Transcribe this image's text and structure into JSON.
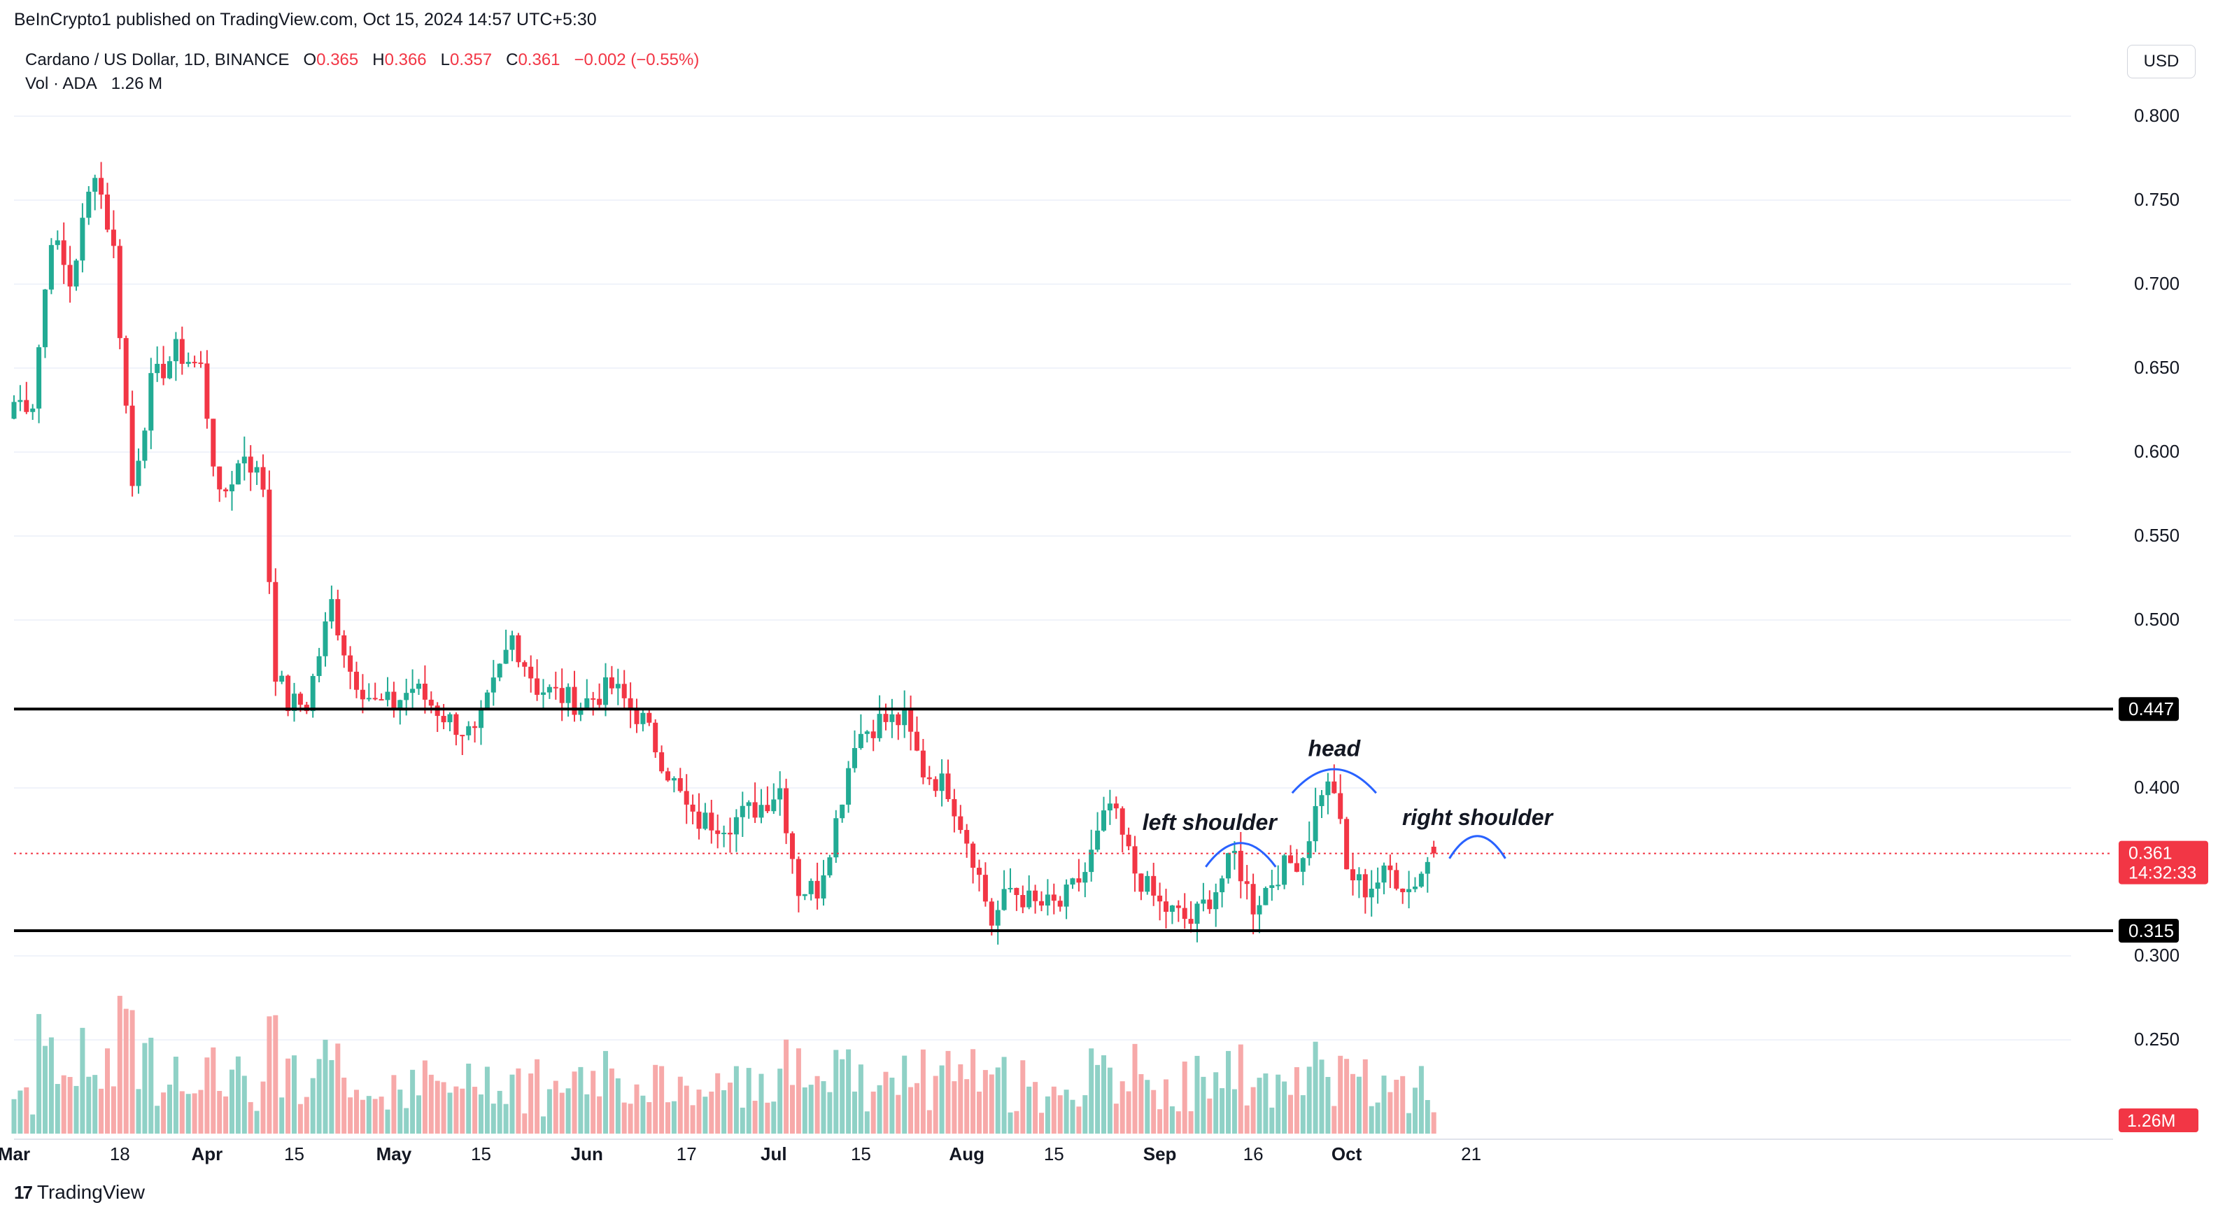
{
  "publisher_line": "BeInCrypto1 published on TradingView.com, Oct 15, 2024 14:57 UTC+5:30",
  "legend": {
    "symbol": "Cardano / US Dollar, 1D, BINANCE",
    "o_label": "O",
    "o": "0.365",
    "h_label": "H",
    "h": "0.366",
    "l_label": "L",
    "l": "0.357",
    "c_label": "C",
    "c": "0.361",
    "change": "−0.002 (−0.55%)",
    "vol_label": "Vol · ADA",
    "vol": "1.26 M"
  },
  "currency_button": "USD",
  "brand": "TradingView",
  "colors": {
    "up": "#22ab94",
    "down": "#f23645",
    "up_vol": "#8fd1c6",
    "down_vol": "#f7a9a9",
    "annotation": "#2962ff"
  },
  "chart_data": {
    "type": "candlestick",
    "title": "Cardano / US Dollar, 1D, BINANCE",
    "y_ticks": [
      "0.800",
      "0.750",
      "0.700",
      "0.650",
      "0.600",
      "0.550",
      "0.500",
      "0.400",
      "0.300",
      "0.250"
    ],
    "x_ticks": [
      "Mar",
      "18",
      "Apr",
      "15",
      "May",
      "15",
      "Jun",
      "17",
      "Jul",
      "15",
      "Aug",
      "15",
      "Sep",
      "16",
      "Oct",
      "21"
    ],
    "ylim": [
      0.21,
      0.8
    ],
    "levels": [
      {
        "value": 0.447,
        "label": "0.447"
      },
      {
        "value": 0.315,
        "label": "0.315"
      }
    ],
    "last_price": {
      "value": 0.361,
      "label": "0.361",
      "countdown": "14:32:33"
    },
    "volume_label": "1.26M",
    "annotations": [
      "left shoulder",
      "head",
      "right shoulder"
    ],
    "anchors": [
      {
        "date": "2024-03-04",
        "close": 0.63
      },
      {
        "date": "2024-03-07",
        "close": 0.73
      },
      {
        "date": "2024-03-10",
        "close": 0.7
      },
      {
        "date": "2024-03-14",
        "close": 0.77
      },
      {
        "date": "2024-03-17",
        "close": 0.72
      },
      {
        "date": "2024-03-20",
        "close": 0.58
      },
      {
        "date": "2024-03-23",
        "close": 0.64
      },
      {
        "date": "2024-03-27",
        "close": 0.66
      },
      {
        "date": "2024-03-31",
        "close": 0.65
      },
      {
        "date": "2024-04-03",
        "close": 0.57
      },
      {
        "date": "2024-04-07",
        "close": 0.6
      },
      {
        "date": "2024-04-10",
        "close": 0.58
      },
      {
        "date": "2024-04-12",
        "close": 0.47
      },
      {
        "date": "2024-04-14",
        "close": 0.45
      },
      {
        "date": "2024-04-17",
        "close": 0.45
      },
      {
        "date": "2024-04-21",
        "close": 0.51
      },
      {
        "date": "2024-04-24",
        "close": 0.47
      },
      {
        "date": "2024-04-28",
        "close": 0.45
      },
      {
        "date": "2024-05-01",
        "close": 0.45
      },
      {
        "date": "2024-05-04",
        "close": 0.46
      },
      {
        "date": "2024-05-10",
        "close": 0.44
      },
      {
        "date": "2024-05-14",
        "close": 0.43
      },
      {
        "date": "2024-05-20",
        "close": 0.49
      },
      {
        "date": "2024-05-24",
        "close": 0.46
      },
      {
        "date": "2024-05-31",
        "close": 0.45
      },
      {
        "date": "2024-06-05",
        "close": 0.46
      },
      {
        "date": "2024-06-10",
        "close": 0.44
      },
      {
        "date": "2024-06-14",
        "close": 0.41
      },
      {
        "date": "2024-06-18",
        "close": 0.38
      },
      {
        "date": "2024-06-24",
        "close": 0.38
      },
      {
        "date": "2024-06-29",
        "close": 0.39
      },
      {
        "date": "2024-07-02",
        "close": 0.4
      },
      {
        "date": "2024-07-05",
        "close": 0.34
      },
      {
        "date": "2024-07-08",
        "close": 0.34
      },
      {
        "date": "2024-07-11",
        "close": 0.38
      },
      {
        "date": "2024-07-14",
        "close": 0.43
      },
      {
        "date": "2024-07-18",
        "close": 0.44
      },
      {
        "date": "2024-07-22",
        "close": 0.44
      },
      {
        "date": "2024-07-25",
        "close": 0.41
      },
      {
        "date": "2024-07-29",
        "close": 0.4
      },
      {
        "date": "2024-08-02",
        "close": 0.36
      },
      {
        "date": "2024-08-05",
        "close": 0.32
      },
      {
        "date": "2024-08-08",
        "close": 0.34
      },
      {
        "date": "2024-08-12",
        "close": 0.33
      },
      {
        "date": "2024-08-16",
        "close": 0.33
      },
      {
        "date": "2024-08-20",
        "close": 0.35
      },
      {
        "date": "2024-08-24",
        "close": 0.39
      },
      {
        "date": "2024-08-28",
        "close": 0.35
      },
      {
        "date": "2024-09-01",
        "close": 0.33
      },
      {
        "date": "2024-09-06",
        "close": 0.32
      },
      {
        "date": "2024-09-10",
        "close": 0.34
      },
      {
        "date": "2024-09-13",
        "close": 0.36
      },
      {
        "date": "2024-09-16",
        "close": 0.33
      },
      {
        "date": "2024-09-20",
        "close": 0.35
      },
      {
        "date": "2024-09-24",
        "close": 0.36
      },
      {
        "date": "2024-09-27",
        "close": 0.4
      },
      {
        "date": "2024-09-29",
        "close": 0.4
      },
      {
        "date": "2024-10-01",
        "close": 0.35
      },
      {
        "date": "2024-10-04",
        "close": 0.34
      },
      {
        "date": "2024-10-08",
        "close": 0.35
      },
      {
        "date": "2024-10-11",
        "close": 0.34
      },
      {
        "date": "2024-10-15",
        "close": 0.361
      }
    ]
  }
}
